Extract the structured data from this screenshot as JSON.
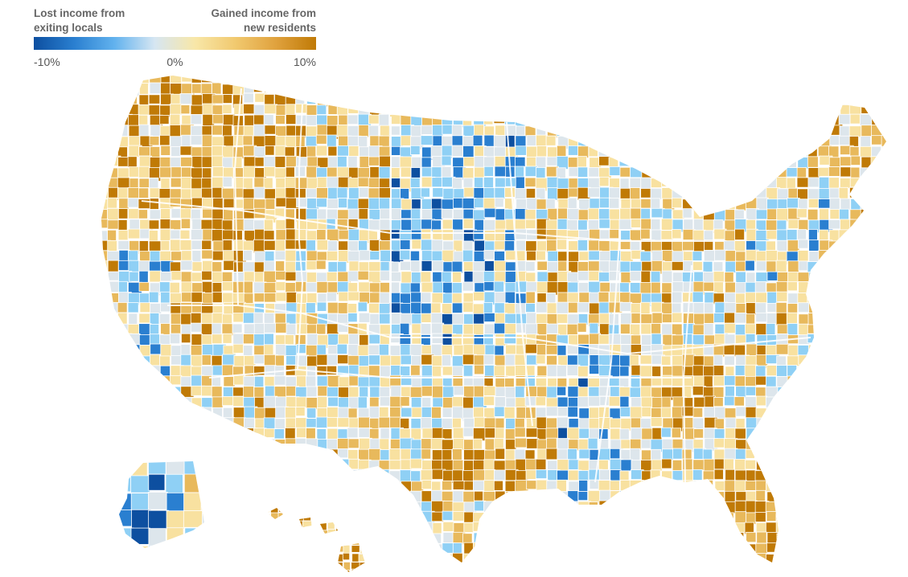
{
  "legend": {
    "left_label": "Lost income from\nexiting locals",
    "right_label": "Gained income from\nnew residents",
    "tick_min": "-10%",
    "tick_mid": "0%",
    "tick_max": "10%",
    "scale_min": -10,
    "scale_max": 10,
    "color_stops": [
      "#0d4fa0",
      "#2a7fd0",
      "#62b2ee",
      "#d6e6f2",
      "#f8e7a8",
      "#f1c96f",
      "#e0a23e",
      "#c07a06"
    ]
  },
  "map": {
    "subject": "county-level net income change from migration",
    "regions": [
      "contiguous-us",
      "alaska",
      "hawaii"
    ],
    "colors": {
      "strong_loss": "#0d4fa0",
      "loss": "#2a7fd0",
      "mild_loss": "#8fd0f5",
      "neutral": "#dde6ec",
      "mild_gain": "#f8e1a0",
      "gain": "#e8b95c",
      "strong_gain": "#c07a06",
      "border": "#ffffff"
    }
  }
}
